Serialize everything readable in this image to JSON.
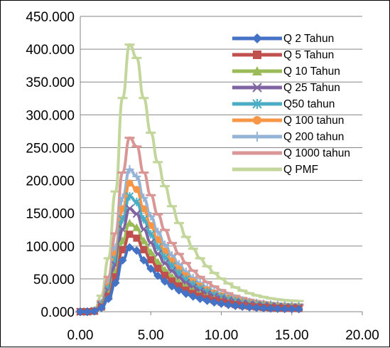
{
  "chart_data": {
    "type": "line",
    "title": "",
    "xlabel": "",
    "ylabel": "",
    "xlim": [
      0,
      20
    ],
    "ylim": [
      0,
      450
    ],
    "x_ticks": [
      0,
      5,
      10,
      15,
      20
    ],
    "x_tick_labels": [
      "0.00",
      "5.00",
      "10.00",
      "15.00",
      "20.00"
    ],
    "y_ticks": [
      0,
      50,
      100,
      150,
      200,
      250,
      300,
      350,
      400,
      450
    ],
    "y_tick_labels": [
      "0.000",
      "50.000",
      "100.000",
      "150.000",
      "200.000",
      "250.000",
      "300.000",
      "350.000",
      "400.000",
      "450.000"
    ],
    "grid": "horizontal",
    "legend_position": "right",
    "x": [
      0,
      0.5,
      1.0,
      1.5,
      2.0,
      2.5,
      3.0,
      3.5,
      4.0,
      4.5,
      5.0,
      5.5,
      6.0,
      6.5,
      7.0,
      7.5,
      8.0,
      8.5,
      9.0,
      9.5,
      10.0,
      10.5,
      11.0,
      11.5,
      12.0,
      12.5,
      13.0,
      13.5,
      14.0,
      14.5,
      15.0,
      15.5
    ],
    "unit_shape": [
      0,
      0,
      0.007,
      0.06,
      0.2,
      0.45,
      0.8,
      1.0,
      0.95,
      0.8,
      0.67,
      0.56,
      0.47,
      0.395,
      0.332,
      0.28,
      0.236,
      0.2,
      0.17,
      0.145,
      0.124,
      0.106,
      0.091,
      0.079,
      0.069,
      0.061,
      0.055,
      0.05,
      0.046,
      0.043,
      0.041,
      0.04
    ],
    "series": [
      {
        "name": "Q 2 Tahun",
        "peak": 98,
        "color": "#4472C4",
        "marker": "diamond"
      },
      {
        "name": "Q 5 Tahun",
        "peak": 118,
        "color": "#C0504D",
        "marker": "square"
      },
      {
        "name": "Q 10 Tahun",
        "peak": 135,
        "color": "#9BBB59",
        "marker": "triangle"
      },
      {
        "name": "Q 25 Tahun",
        "peak": 157,
        "color": "#8064A2",
        "marker": "x"
      },
      {
        "name": "Q50 tahun",
        "peak": 176,
        "color": "#4BACC6",
        "marker": "star"
      },
      {
        "name": "Q 100 tahun",
        "peak": 196,
        "color": "#F79646",
        "marker": "circle"
      },
      {
        "name": "Q 200 tahun",
        "peak": 217,
        "color": "#95B3D7",
        "marker": "plus"
      },
      {
        "name": "Q 1000 tahun",
        "peak": 265,
        "color": "#D99694",
        "marker": "dash"
      },
      {
        "name": "Q PMF",
        "peak": 407,
        "color": "#C3D69B",
        "marker": "dash"
      }
    ]
  }
}
